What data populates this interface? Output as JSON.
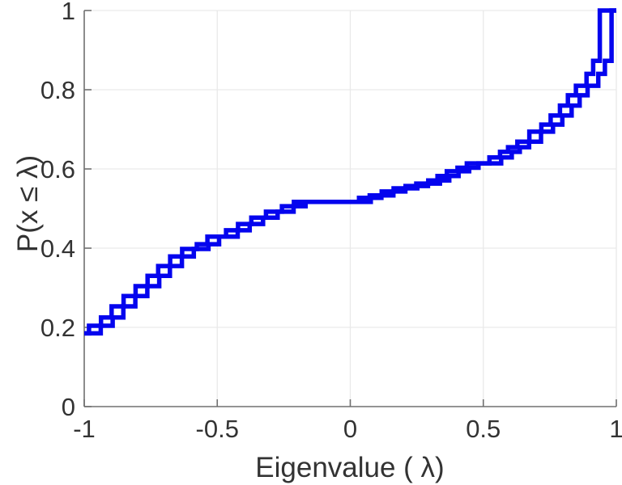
{
  "chart_data": {
    "type": "line",
    "subtype": "ecdf-stairs",
    "title": "",
    "xlabel": "Eigenvalue ( λ)",
    "ylabel": "P(x ≤ λ)",
    "xlim": [
      -1,
      1
    ],
    "ylim": [
      0,
      1
    ],
    "grid": true,
    "legend": "none",
    "line_color": "#0404ee",
    "line_width": 5.5,
    "axis_color": "#707070",
    "grid_color": "#e9e9e9",
    "text_color": "#333333",
    "x_ticks": [
      -1,
      -0.5,
      0,
      0.5,
      1
    ],
    "x_tick_labels": [
      "-1",
      "-0.5",
      "0",
      "0.5",
      "1"
    ],
    "y_ticks": [
      0,
      0.2,
      0.4,
      0.6,
      0.8,
      1
    ],
    "y_tick_labels": [
      "0",
      "0.2",
      "0.4",
      "0.6",
      "0.8",
      "1"
    ],
    "series": [
      {
        "name": "eigenvalue-ecdf",
        "start": {
          "x": -1,
          "p": 0.185
        },
        "end_x": 1,
        "step_x": [
          -0.96,
          -0.915,
          -0.875,
          -0.83,
          -0.785,
          -0.74,
          -0.7,
          -0.655,
          -0.61,
          -0.555,
          -0.515,
          -0.445,
          -0.4,
          -0.35,
          -0.295,
          -0.235,
          -0.19,
          0.055,
          0.095,
          0.14,
          0.185,
          0.23,
          0.27,
          0.315,
          0.35,
          0.385,
          0.425,
          0.46,
          0.545,
          0.585,
          0.615,
          0.65,
          0.695,
          0.74,
          0.775,
          0.81,
          0.84,
          0.87,
          0.91,
          0.935,
          0.96
        ],
        "step_p": [
          0.204,
          0.225,
          0.253,
          0.279,
          0.304,
          0.33,
          0.355,
          0.379,
          0.398,
          0.41,
          0.429,
          0.445,
          0.461,
          0.477,
          0.492,
          0.506,
          0.517,
          0.527,
          0.533,
          0.543,
          0.551,
          0.557,
          0.563,
          0.571,
          0.582,
          0.594,
          0.603,
          0.614,
          0.629,
          0.643,
          0.655,
          0.669,
          0.694,
          0.712,
          0.735,
          0.76,
          0.786,
          0.81,
          0.84,
          0.873,
          1.0
        ]
      }
    ],
    "twin_offset": 0.022
  }
}
